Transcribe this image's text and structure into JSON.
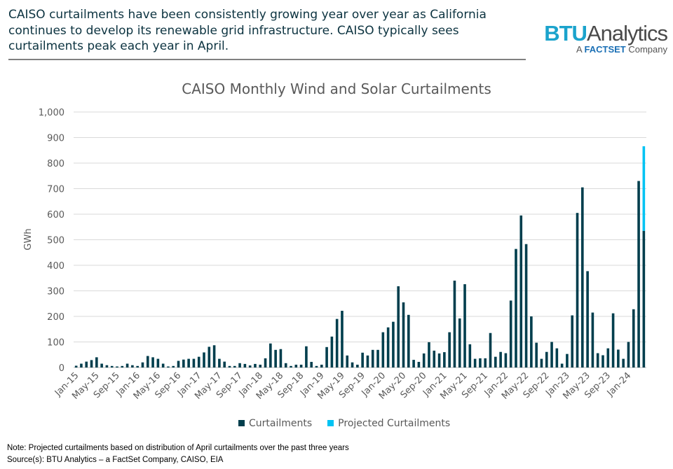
{
  "header": {
    "intro_text": "CAISO curtailments have been consistently growing year over year as California continues to develop its renewable grid infrastructure.  CAISO typically sees curtailments peak each year in April.",
    "logo": {
      "brand_bold": "BTU",
      "brand_rest": "Analytics",
      "sub_prefix": "A ",
      "sub_brand": "FACTSET",
      "sub_suffix": " Company"
    }
  },
  "chart_data": {
    "type": "bar",
    "stacked": true,
    "title": "CAISO Monthly Wind and Solar Curtailments",
    "xlabel": "",
    "ylabel": "GWh",
    "ylim": [
      0,
      1000
    ],
    "yticks": [
      "0",
      "100",
      "200",
      "300",
      "400",
      "500",
      "600",
      "700",
      "800",
      "900",
      "1,000"
    ],
    "grid": true,
    "legend_position": "bottom",
    "colors": {
      "Curtailments": "#003e4d",
      "Projected Curtailments": "#00c3f3"
    },
    "categories": [
      "Jan-15",
      "Feb-15",
      "Mar-15",
      "Apr-15",
      "May-15",
      "Jun-15",
      "Jul-15",
      "Aug-15",
      "Sep-15",
      "Oct-15",
      "Nov-15",
      "Dec-15",
      "Jan-16",
      "Feb-16",
      "Mar-16",
      "Apr-16",
      "May-16",
      "Jun-16",
      "Jul-16",
      "Aug-16",
      "Sep-16",
      "Oct-16",
      "Nov-16",
      "Dec-16",
      "Jan-17",
      "Feb-17",
      "Mar-17",
      "Apr-17",
      "May-17",
      "Jun-17",
      "Jul-17",
      "Aug-17",
      "Sep-17",
      "Oct-17",
      "Nov-17",
      "Dec-17",
      "Jan-18",
      "Feb-18",
      "Mar-18",
      "Apr-18",
      "May-18",
      "Jun-18",
      "Jul-18",
      "Aug-18",
      "Sep-18",
      "Oct-18",
      "Nov-18",
      "Dec-18",
      "Jan-19",
      "Feb-19",
      "Mar-19",
      "Apr-19",
      "May-19",
      "Jun-19",
      "Jul-19",
      "Aug-19",
      "Sep-19",
      "Oct-19",
      "Nov-19",
      "Dec-19",
      "Jan-20",
      "Feb-20",
      "Mar-20",
      "Apr-20",
      "May-20",
      "Jun-20",
      "Jul-20",
      "Aug-20",
      "Sep-20",
      "Oct-20",
      "Nov-20",
      "Dec-20",
      "Jan-21",
      "Feb-21",
      "Mar-21",
      "Apr-21",
      "May-21",
      "Jun-21",
      "Jul-21",
      "Aug-21",
      "Sep-21",
      "Oct-21",
      "Nov-21",
      "Dec-21",
      "Jan-22",
      "Feb-22",
      "Mar-22",
      "Apr-22",
      "May-22",
      "Jun-22",
      "Jul-22",
      "Aug-22",
      "Sep-22",
      "Oct-22",
      "Nov-22",
      "Dec-22",
      "Jan-23",
      "Feb-23",
      "Mar-23",
      "Apr-23",
      "May-23",
      "Jun-23",
      "Jul-23",
      "Aug-23",
      "Sep-23",
      "Oct-23",
      "Nov-23",
      "Dec-23",
      "Jan-24",
      "Feb-24",
      "Mar-24",
      "Apr-24"
    ],
    "series": [
      {
        "name": "Curtailments",
        "values": [
          7,
          15,
          23,
          29,
          40,
          15,
          9,
          6,
          4,
          6,
          15,
          9,
          6,
          20,
          45,
          40,
          34,
          15,
          4,
          6,
          26,
          31,
          34,
          34,
          42,
          59,
          81,
          87,
          34,
          23,
          6,
          6,
          17,
          14,
          8,
          14,
          11,
          36,
          94,
          69,
          72,
          17,
          6,
          11,
          11,
          83,
          22,
          6,
          11,
          80,
          121,
          190,
          222,
          47,
          20,
          11,
          58,
          47,
          69,
          69,
          138,
          157,
          179,
          318,
          255,
          206,
          30,
          22,
          55,
          99,
          66,
          55,
          60,
          138,
          340,
          192,
          326,
          91,
          34,
          36,
          36,
          135,
          42,
          61,
          56,
          262,
          464,
          595,
          483,
          200,
          97,
          34,
          61,
          100,
          75,
          15,
          53,
          204,
          605,
          705,
          377,
          215,
          56,
          48,
          75,
          212,
          70,
          34,
          100,
          228,
          730,
          535
        ]
      },
      {
        "name": "Projected Curtailments",
        "values": [
          0,
          0,
          0,
          0,
          0,
          0,
          0,
          0,
          0,
          0,
          0,
          0,
          0,
          0,
          0,
          0,
          0,
          0,
          0,
          0,
          0,
          0,
          0,
          0,
          0,
          0,
          0,
          0,
          0,
          0,
          0,
          0,
          0,
          0,
          0,
          0,
          0,
          0,
          0,
          0,
          0,
          0,
          0,
          0,
          0,
          0,
          0,
          0,
          0,
          0,
          0,
          0,
          0,
          0,
          0,
          0,
          0,
          0,
          0,
          0,
          0,
          0,
          0,
          0,
          0,
          0,
          0,
          0,
          0,
          0,
          0,
          0,
          0,
          0,
          0,
          0,
          0,
          0,
          0,
          0,
          0,
          0,
          0,
          0,
          0,
          0,
          0,
          0,
          0,
          0,
          0,
          0,
          0,
          0,
          0,
          0,
          0,
          0,
          0,
          0,
          0,
          0,
          0,
          0,
          0,
          0,
          0,
          0,
          0,
          0,
          0,
          331
        ]
      }
    ]
  },
  "footer": {
    "note": "Note:  Projected curtailments based on distribution of April curtailments over the  past three years",
    "source": "Source(s): BTU Analytics – a FactSet Company, CAISO, EIA"
  }
}
